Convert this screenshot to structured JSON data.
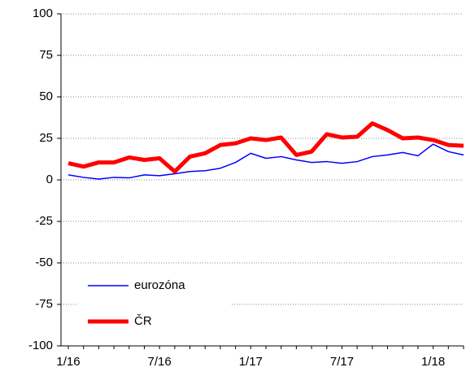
{
  "chart_data": {
    "type": "line",
    "categories": [
      "1/16",
      null,
      null,
      null,
      null,
      null,
      "7/16",
      null,
      null,
      null,
      null,
      null,
      "1/17",
      null,
      null,
      null,
      null,
      null,
      "7/17",
      null,
      null,
      null,
      null,
      null,
      "1/18",
      null,
      null
    ],
    "series": [
      {
        "name": "eurozóna",
        "color": "#0000ff",
        "values": [
          3,
          1.5,
          0.5,
          1.5,
          1.2,
          3,
          2.5,
          3.7,
          5,
          5.5,
          7,
          10.5,
          16,
          13,
          14,
          12,
          10.5,
          11,
          10,
          11,
          14,
          15,
          16.5,
          14.5,
          21.5,
          17,
          15
        ]
      },
      {
        "name": "ČR",
        "color": "#ff0000",
        "values": [
          10,
          8,
          10.5,
          10.5,
          13.5,
          12,
          13,
          5,
          14,
          16,
          21,
          22,
          25,
          24,
          25.5,
          15,
          17,
          27.5,
          25.5,
          26,
          34,
          30,
          25,
          25.5,
          24,
          21,
          20.5
        ]
      }
    ],
    "ylim": [
      -100,
      100
    ],
    "yticks": [
      -100,
      -75,
      -50,
      -25,
      0,
      25,
      50,
      75,
      100
    ],
    "grid": true,
    "legend": "lower left"
  }
}
